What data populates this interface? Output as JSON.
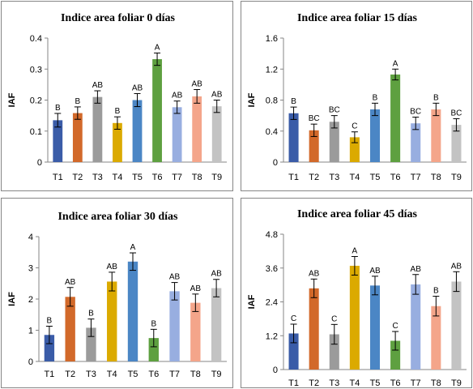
{
  "chart_data": [
    {
      "type": "bar",
      "title": "Indice area foliar 0 días",
      "ylabel": "IAF",
      "xlabel": "",
      "ylim": [
        0,
        0.4
      ],
      "yticks": [
        "0",
        "0.1",
        "0.2",
        "0.3",
        "0.4"
      ],
      "categories": [
        "T1",
        "T2",
        "T3",
        "T4",
        "T5",
        "T6",
        "T7",
        "T8",
        "T9"
      ],
      "values": [
        0.135,
        0.158,
        0.21,
        0.126,
        0.2,
        0.332,
        0.177,
        0.212,
        0.18
      ],
      "errors": [
        0.022,
        0.02,
        0.02,
        0.02,
        0.021,
        0.02,
        0.02,
        0.022,
        0.02
      ],
      "labels": [
        "B",
        "B",
        "AB",
        "B",
        "AB",
        "A",
        "AB",
        "AB",
        "AB"
      ],
      "grid": false
    },
    {
      "type": "bar",
      "title": "Indice area foliar 15 días",
      "ylabel": "IAF",
      "xlabel": "",
      "ylim": [
        0,
        1.6
      ],
      "yticks": [
        "0",
        "0.4",
        "0.8",
        "1.2",
        "1.6"
      ],
      "categories": [
        "T1",
        "T2",
        "T3",
        "T4",
        "T5",
        "T6",
        "T7",
        "T8",
        "T9"
      ],
      "values": [
        0.63,
        0.41,
        0.52,
        0.32,
        0.68,
        1.13,
        0.5,
        0.68,
        0.48
      ],
      "errors": [
        0.08,
        0.08,
        0.08,
        0.07,
        0.08,
        0.07,
        0.08,
        0.08,
        0.08
      ],
      "labels": [
        "B",
        "BC",
        "BC",
        "C",
        "B",
        "A",
        "BC",
        "B",
        "BC"
      ],
      "grid": false
    },
    {
      "type": "bar",
      "title": "Indice area foliar 30 días",
      "ylabel": "IAF",
      "xlabel": "",
      "ylim": [
        0,
        4
      ],
      "yticks": [
        "0",
        "1",
        "2",
        "3",
        "4"
      ],
      "categories": [
        "T1",
        "T2",
        "T3",
        "T4",
        "T5",
        "T6",
        "T7",
        "T8",
        "T9"
      ],
      "values": [
        0.85,
        2.07,
        1.08,
        2.56,
        3.2,
        0.75,
        2.25,
        1.88,
        2.35
      ],
      "errors": [
        0.28,
        0.3,
        0.28,
        0.3,
        0.28,
        0.28,
        0.28,
        0.28,
        0.28
      ],
      "labels": [
        "B",
        "AB",
        "B",
        "AB",
        "A",
        "B",
        "AB",
        "AB",
        "AB"
      ],
      "grid": false
    },
    {
      "type": "bar",
      "title": "Indice area foliar 45 días",
      "ylabel": "IAF",
      "xlabel": "",
      "ylim": [
        0,
        4.8
      ],
      "yticks": [
        "0",
        "1.2",
        "2.4",
        "3.6",
        "4.8"
      ],
      "categories": [
        "T1",
        "T2",
        "T3",
        "T4",
        "T5",
        "T6",
        "T7",
        "T8",
        "T9"
      ],
      "values": [
        1.28,
        2.88,
        1.25,
        3.68,
        2.98,
        1.02,
        3.02,
        2.25,
        3.12
      ],
      "errors": [
        0.33,
        0.33,
        0.35,
        0.33,
        0.33,
        0.33,
        0.35,
        0.35,
        0.35
      ],
      "labels": [
        "C",
        "AB",
        "C",
        "A",
        "AB",
        "C",
        "AB",
        "B",
        "AB"
      ],
      "grid": false
    }
  ],
  "colors": [
    "#3a5ca8",
    "#d2692a",
    "#9b9b9b",
    "#dbaa00",
    "#4b86c5",
    "#5ea040",
    "#98aee0",
    "#f4a58a",
    "#c3c3c3"
  ],
  "panel_colors": {
    "border": "#868686",
    "axis": "#868686",
    "error_bar": "#000000"
  }
}
